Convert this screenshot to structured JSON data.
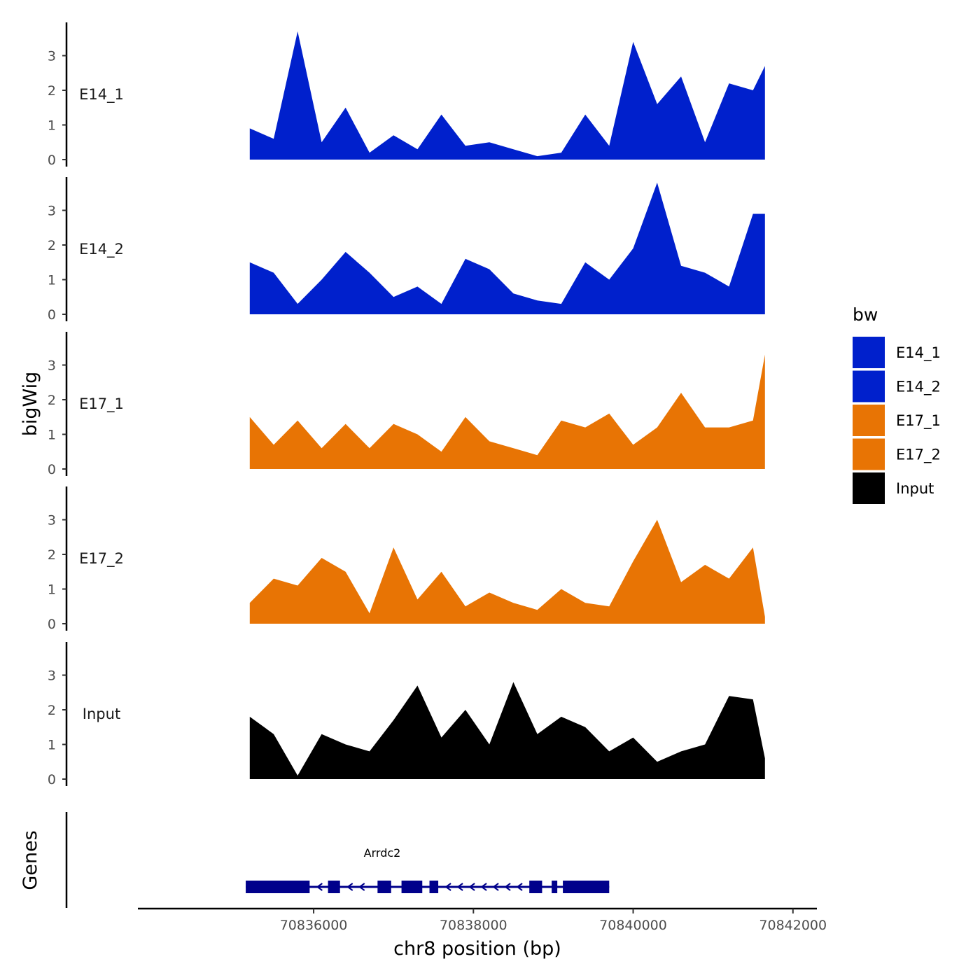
{
  "chart_data": {
    "type": "area",
    "title": "",
    "xlabel": "chr8 position (bp)",
    "ylabel": "bigWig",
    "genes_label": "Genes",
    "xlim": [
      70833800,
      70842300
    ],
    "ylim": [
      0,
      4
    ],
    "x_ticks": [
      70836000,
      70838000,
      70840000,
      70842000
    ],
    "x_tick_labels": [
      "70836000",
      "70838000",
      "70840000",
      "70842000"
    ],
    "y_ticks": [
      0,
      1,
      2,
      3
    ],
    "legend": {
      "title": "bw",
      "placement": "right",
      "entries": [
        {
          "label": "E14_1",
          "color": "#0020CC"
        },
        {
          "label": "E14_2",
          "color": "#0020CC"
        },
        {
          "label": "E17_1",
          "color": "#E87404"
        },
        {
          "label": "E17_2",
          "color": "#E87404"
        },
        {
          "label": "Input",
          "color": "#000000"
        }
      ]
    },
    "x": [
      70835200,
      70835500,
      70835800,
      70836100,
      70836400,
      70836700,
      70837000,
      70837300,
      70837600,
      70837900,
      70838200,
      70838500,
      70838800,
      70839100,
      70839400,
      70839700,
      70840000,
      70840300,
      70840600,
      70840900,
      70841200,
      70841500,
      70841650
    ],
    "series": [
      {
        "name": "E14_1",
        "color": "#0020CC",
        "values": [
          0.9,
          0.6,
          3.7,
          0.5,
          1.5,
          0.2,
          0.7,
          0.3,
          1.3,
          0.4,
          0.5,
          0.3,
          0.1,
          0.2,
          1.3,
          0.4,
          3.4,
          1.6,
          2.4,
          0.5,
          2.2,
          2.0,
          2.7
        ]
      },
      {
        "name": "E14_2",
        "color": "#0020CC",
        "values": [
          1.5,
          1.2,
          0.3,
          1.0,
          1.8,
          1.2,
          0.5,
          0.8,
          0.3,
          1.6,
          1.3,
          0.6,
          0.4,
          0.3,
          1.5,
          1.0,
          1.9,
          3.8,
          1.4,
          1.2,
          0.8,
          2.9,
          2.9
        ]
      },
      {
        "name": "E17_1",
        "color": "#E87404",
        "values": [
          1.5,
          0.7,
          1.4,
          0.6,
          1.3,
          0.6,
          1.3,
          1.0,
          0.5,
          1.5,
          0.8,
          0.6,
          0.4,
          1.4,
          1.2,
          1.6,
          0.7,
          1.2,
          2.2,
          1.2,
          1.2,
          1.4,
          3.3
        ]
      },
      {
        "name": "E17_2",
        "color": "#E87404",
        "values": [
          0.6,
          1.3,
          1.1,
          1.9,
          1.5,
          0.3,
          2.2,
          0.7,
          1.5,
          0.5,
          0.9,
          0.6,
          0.4,
          1.0,
          0.6,
          0.5,
          1.8,
          3.0,
          1.2,
          1.7,
          1.3,
          2.2,
          0.2
        ]
      },
      {
        "name": "Input",
        "color": "#000000",
        "values": [
          1.8,
          1.3,
          0.1,
          1.3,
          1.0,
          0.8,
          1.7,
          2.7,
          1.2,
          2.0,
          1.0,
          2.8,
          1.3,
          1.8,
          1.5,
          0.8,
          1.2,
          0.5,
          0.8,
          1.0,
          2.4,
          2.3,
          0.6
        ]
      }
    ],
    "gene_track": {
      "gene_name": "Arrdc2",
      "strand": "-",
      "start": 70835150,
      "end": 70839700,
      "color": "#00008B",
      "exons": [
        [
          70835150,
          70835950
        ],
        [
          70836180,
          70836330
        ],
        [
          70836800,
          70836970
        ],
        [
          70837100,
          70837360
        ],
        [
          70837450,
          70837560
        ],
        [
          70838700,
          70838860
        ],
        [
          70838980,
          70839050
        ],
        [
          70839120,
          70839700
        ]
      ]
    }
  }
}
